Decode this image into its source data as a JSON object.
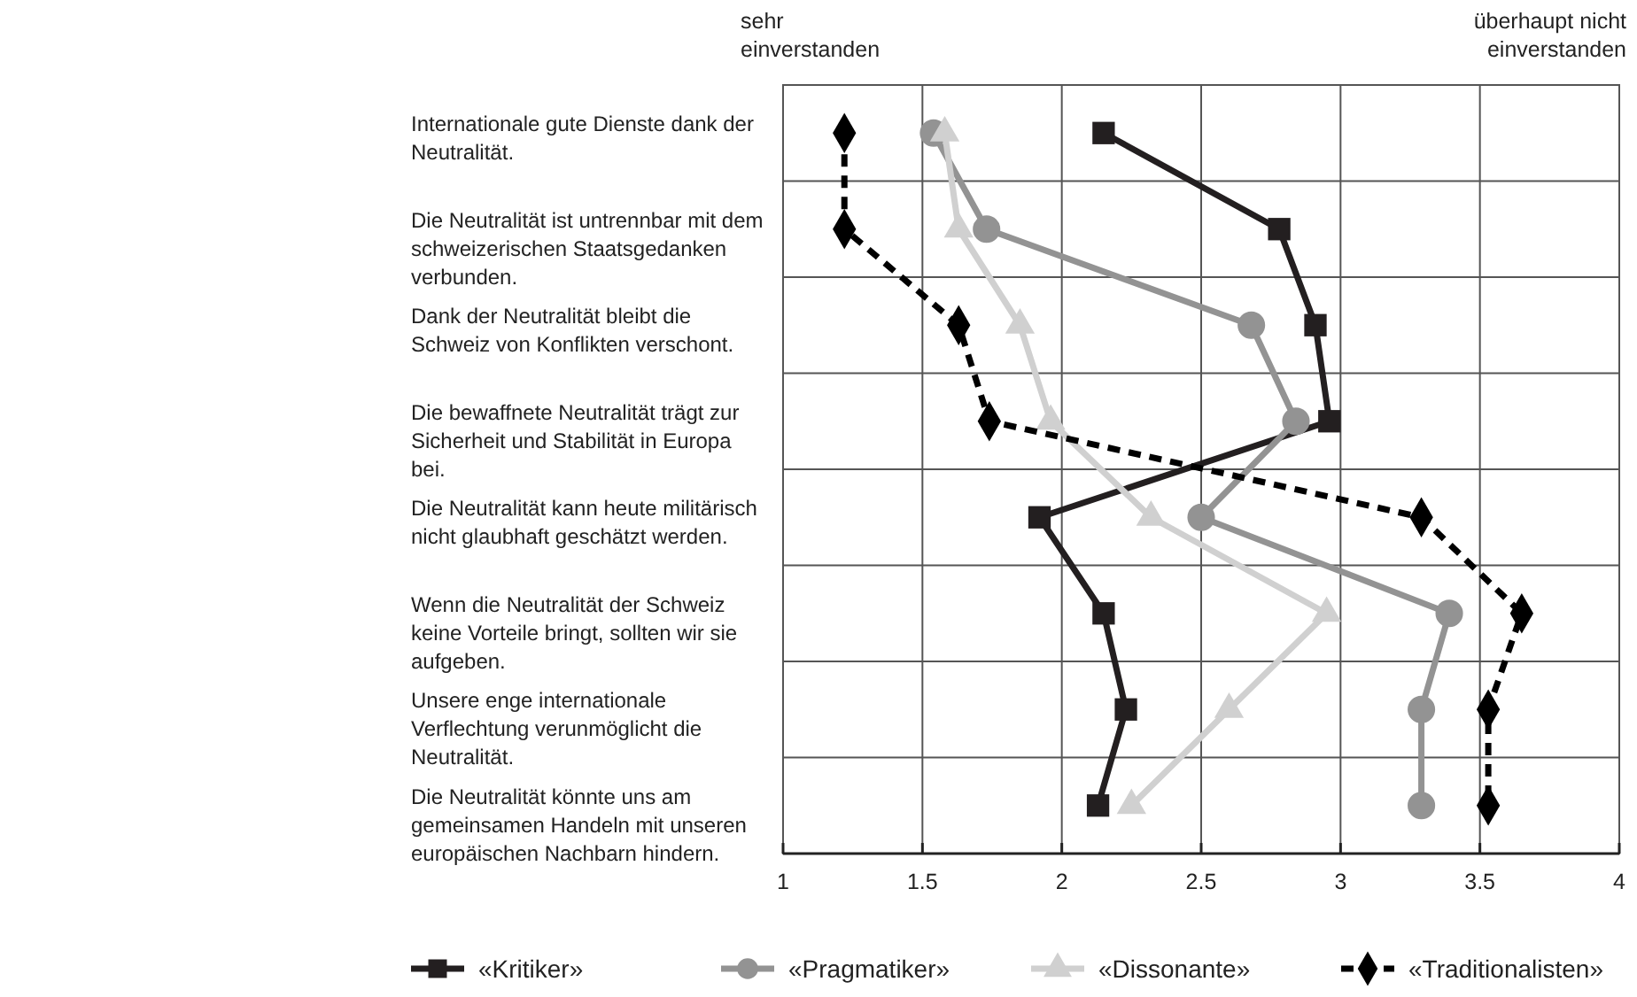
{
  "chart_data": {
    "type": "line",
    "orientation": "horizontal",
    "categories": [
      "Internationale gute Dienste dank der Neutralität.",
      "Die Neutralität ist untrennbar mit dem schweizerischen Staatsgedanken verbunden.",
      "Dank der Neutralität bleibt die Schweiz von Konflikten verschont.",
      "Die bewaffnete Neutralität trägt zur Sicherheit und Stabilität in Europa bei.",
      "Die Neutralität kann heute militärisch nicht glaubhaft geschätzt werden.",
      "Wenn die Neutralität der Schweiz keine Vorteile bringt, sollten wir sie aufgeben.",
      "Unsere enge internationale Verflechtung verunmöglicht die Neutralität.",
      "Die Neutralität könnte uns am gemeinsamen Handeln mit unseren europäischen Nachbarn hindern."
    ],
    "series": [
      {
        "name": "«Kritiker»",
        "color": "#231f20",
        "marker": "square",
        "line_style": "solid",
        "values": [
          2.15,
          2.78,
          2.91,
          2.96,
          1.92,
          2.15,
          2.23,
          2.13
        ]
      },
      {
        "name": "«Pragmatiker»",
        "color": "#939393",
        "marker": "circle",
        "line_style": "solid",
        "values": [
          1.54,
          1.73,
          2.68,
          2.84,
          2.5,
          3.39,
          3.29,
          3.29
        ]
      },
      {
        "name": "«Dissonante»",
        "color": "#d0d0d0",
        "marker": "triangle",
        "line_style": "solid",
        "values": [
          1.58,
          1.63,
          1.85,
          1.96,
          2.32,
          2.95,
          2.6,
          2.25
        ]
      },
      {
        "name": "«Traditionalisten»",
        "color": "#000000",
        "marker": "diamond",
        "line_style": "dashed",
        "values": [
          1.22,
          1.22,
          1.63,
          1.74,
          3.29,
          3.65,
          3.53,
          3.53
        ]
      }
    ],
    "xlim": [
      1,
      4
    ],
    "xticks": [
      1,
      1.5,
      2,
      2.5,
      3,
      3.5,
      4
    ],
    "grid": true,
    "legend": "bottom",
    "annotations": [
      "sehr\neinverstanden",
      "überhaupt nicht\neinverstanden"
    ]
  }
}
